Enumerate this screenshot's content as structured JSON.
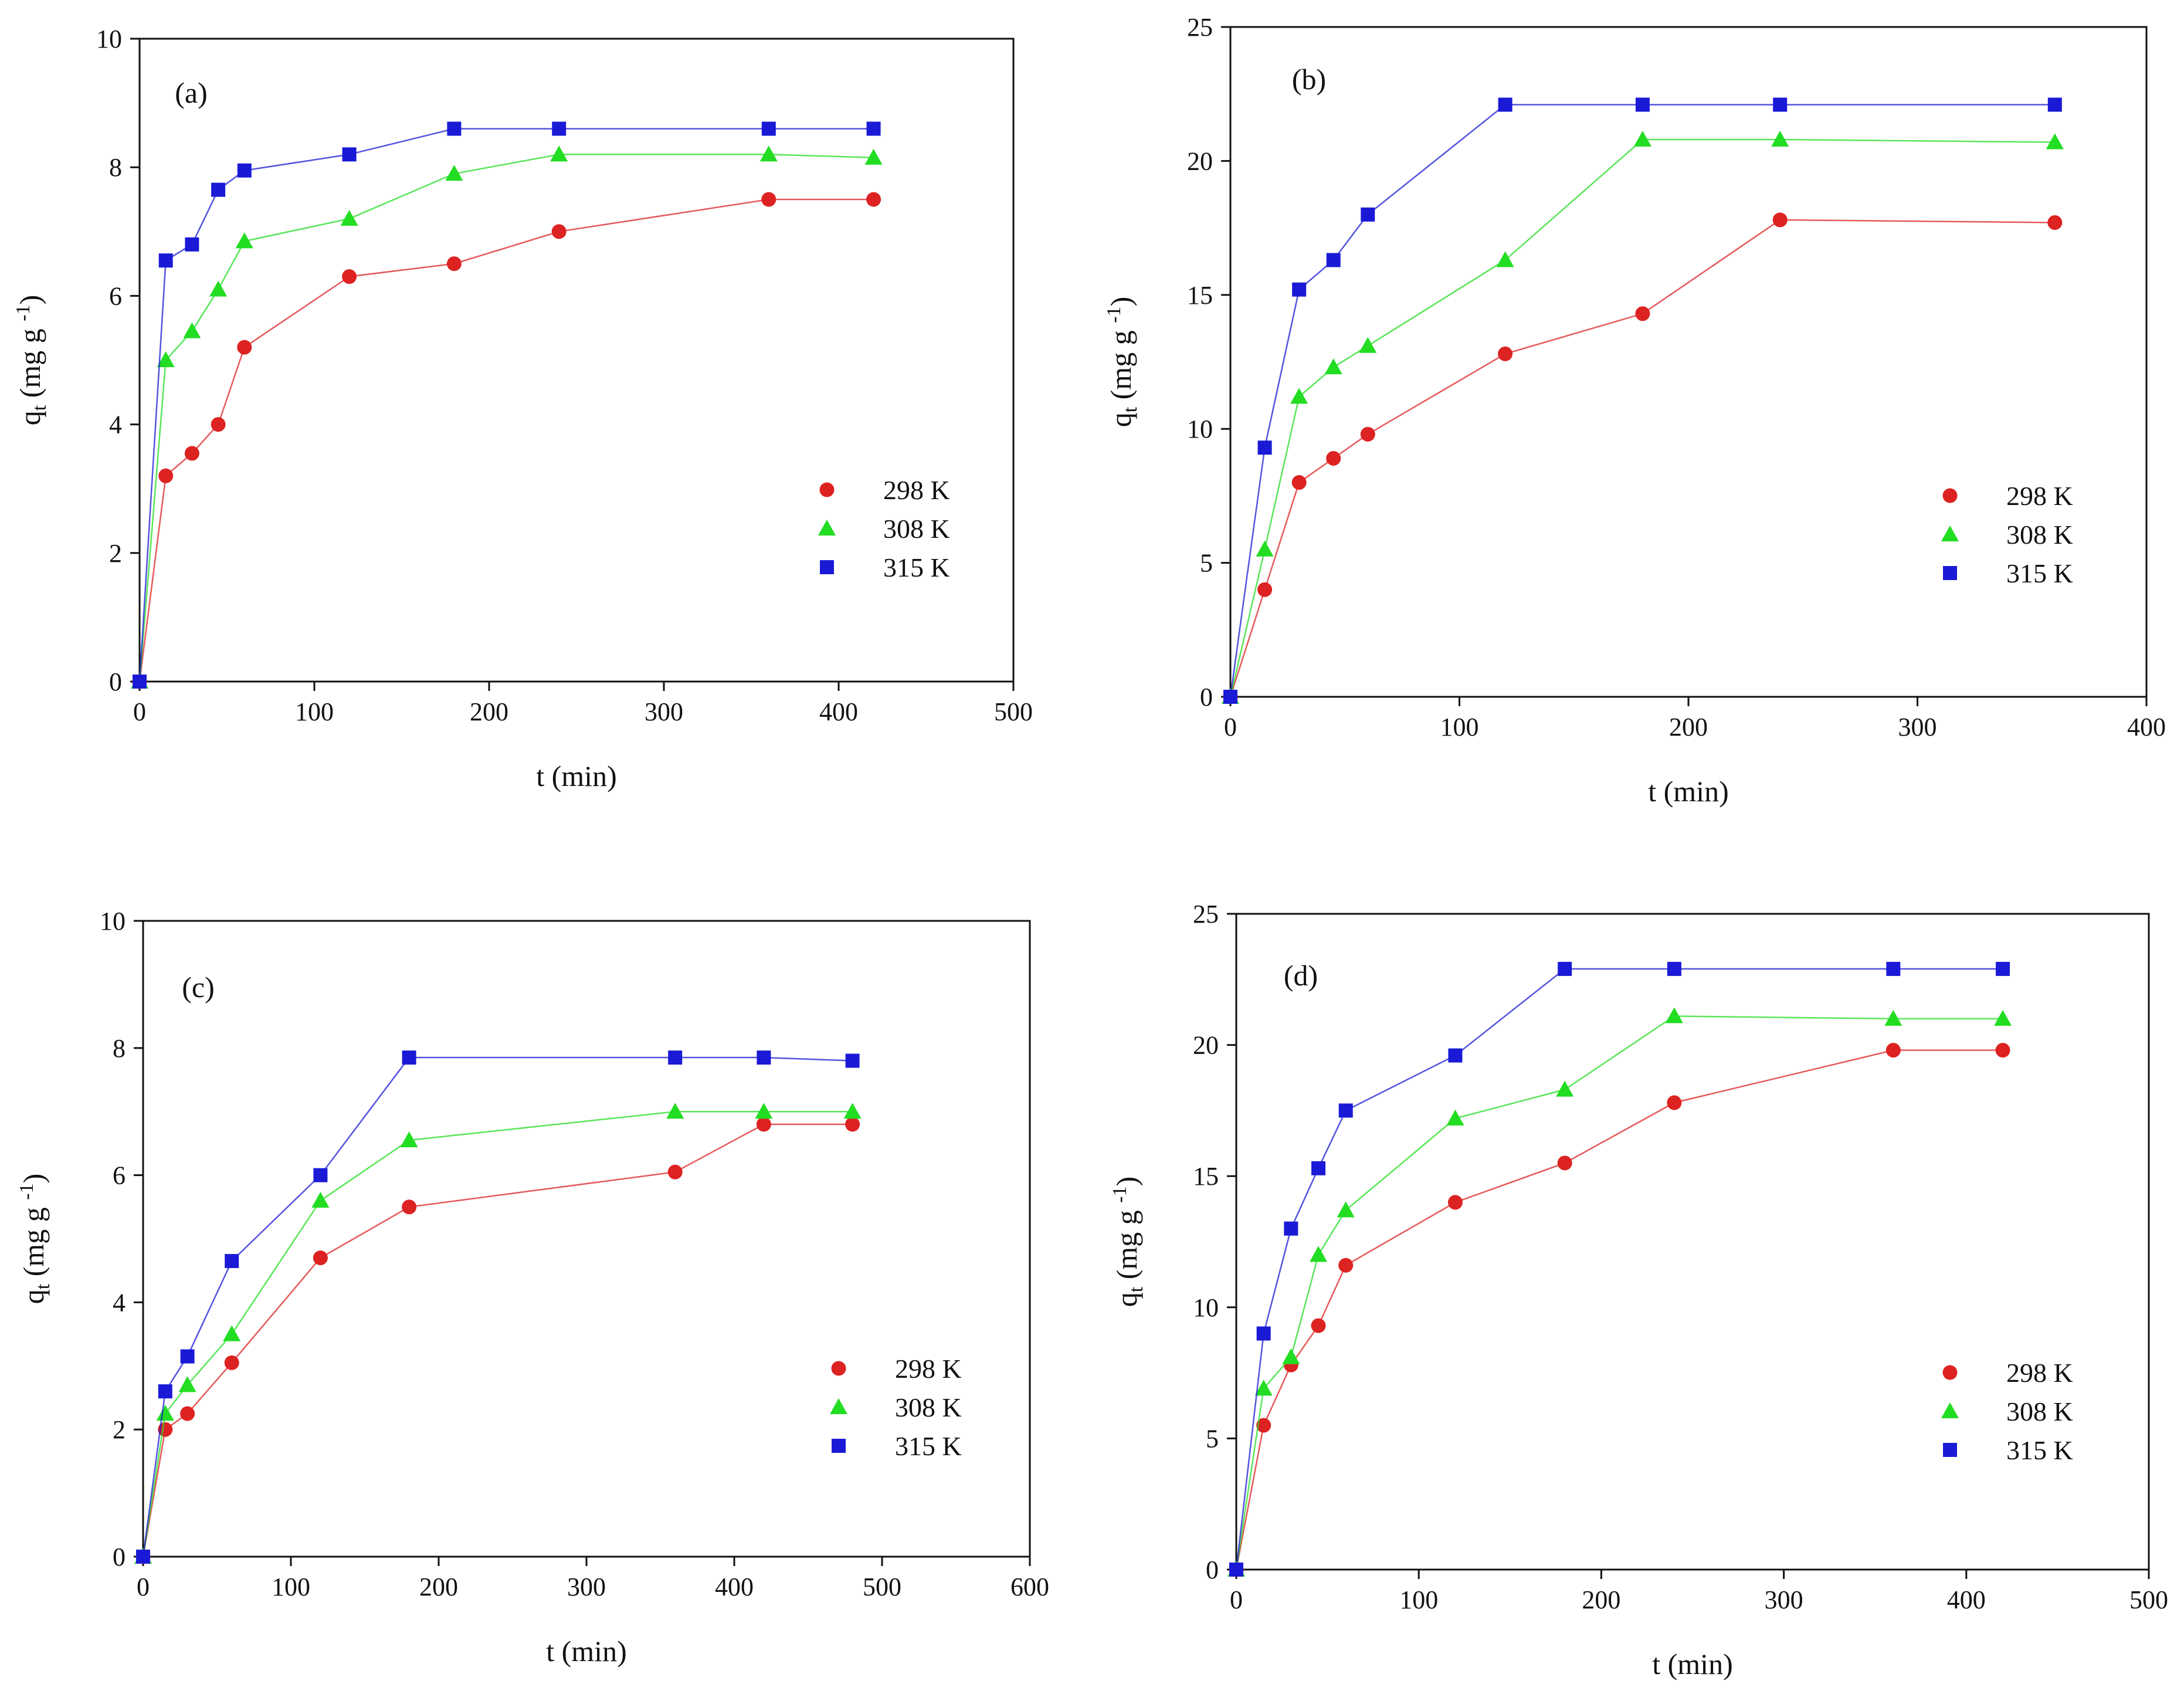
{
  "figure": {
    "colors": {
      "298 K": "#dd2222",
      "308 K": "#22dd22",
      "315 K": "#1a1ad6",
      "axis": "#111111",
      "line": "#cc6666"
    }
  },
  "chart_data": [
    {
      "type": "line",
      "panel": "(a)",
      "xlabel": "t (min)",
      "ylabel": "q",
      "ylabel_sub": "t",
      "ylabel_unit": "(mg g",
      "ylabel_sup": "-1",
      "ylabel_close": ")",
      "xlim": [
        0,
        500
      ],
      "ylim": [
        0,
        10
      ],
      "xticks": [
        0,
        100,
        200,
        300,
        400,
        500
      ],
      "yticks": [
        0,
        2,
        4,
        6,
        8,
        10
      ],
      "legend_position": "center-right",
      "series": [
        {
          "name": "298 K",
          "marker": "circle",
          "x": [
            0,
            15,
            30,
            45,
            60,
            120,
            180,
            240,
            360,
            420
          ],
          "y": [
            0,
            3.2,
            3.55,
            4.0,
            5.2,
            6.3,
            6.5,
            7.0,
            7.5,
            7.5
          ]
        },
        {
          "name": "308 K",
          "marker": "triangle",
          "x": [
            0,
            15,
            30,
            45,
            60,
            120,
            180,
            240,
            360,
            420
          ],
          "y": [
            0,
            5.0,
            5.45,
            6.1,
            6.85,
            7.2,
            7.9,
            8.2,
            8.2,
            8.15
          ]
        },
        {
          "name": "315 K",
          "marker": "square",
          "x": [
            0,
            15,
            30,
            45,
            60,
            120,
            180,
            240,
            360,
            420
          ],
          "y": [
            0,
            6.55,
            6.8,
            7.65,
            7.95,
            8.2,
            8.6,
            8.6,
            8.6,
            8.6
          ]
        }
      ]
    },
    {
      "type": "line",
      "panel": "(b)",
      "xlabel": "t (min)",
      "ylabel": "q",
      "ylabel_sub": "t",
      "ylabel_unit": "(mg g",
      "ylabel_sup": "-1",
      "ylabel_close": ")",
      "xlim": [
        0,
        400
      ],
      "ylim": [
        0,
        25
      ],
      "xticks": [
        0,
        100,
        200,
        300,
        400
      ],
      "yticks": [
        0,
        5,
        10,
        15,
        20,
        25
      ],
      "legend_position": "center-right",
      "series": [
        {
          "name": "298 K",
          "marker": "circle",
          "x": [
            0,
            15,
            30,
            45,
            60,
            120,
            180,
            240,
            360
          ],
          "y": [
            0,
            4.0,
            8.0,
            8.9,
            9.8,
            12.8,
            14.3,
            17.8,
            17.7
          ]
        },
        {
          "name": "308 K",
          "marker": "triangle",
          "x": [
            0,
            15,
            30,
            45,
            60,
            120,
            180,
            240,
            360
          ],
          "y": [
            0,
            5.5,
            11.2,
            12.3,
            13.1,
            16.3,
            20.8,
            20.8,
            20.7
          ]
        },
        {
          "name": "315 K",
          "marker": "square",
          "x": [
            0,
            15,
            30,
            45,
            60,
            120,
            180,
            240,
            360
          ],
          "y": [
            0,
            9.3,
            15.2,
            16.3,
            18.0,
            22.1,
            22.1,
            22.1,
            22.1
          ]
        }
      ]
    },
    {
      "type": "line",
      "panel": "(c)",
      "xlabel": "t (min)",
      "ylabel": "q",
      "ylabel_sub": "t",
      "ylabel_unit": "(mg g",
      "ylabel_sup": "-1",
      "ylabel_close": ")",
      "xlim": [
        0,
        600
      ],
      "ylim": [
        0,
        10
      ],
      "xticks": [
        0,
        100,
        200,
        300,
        400,
        500,
        600
      ],
      "yticks": [
        0,
        2,
        4,
        6,
        8,
        10
      ],
      "legend_position": "bottom-right",
      "series": [
        {
          "name": "298 K",
          "marker": "circle",
          "x": [
            0,
            15,
            30,
            60,
            120,
            180,
            360,
            420,
            480
          ],
          "y": [
            0,
            2.0,
            2.25,
            3.05,
            4.7,
            5.5,
            6.05,
            6.8,
            6.8
          ]
        },
        {
          "name": "308 K",
          "marker": "triangle",
          "x": [
            0,
            15,
            30,
            60,
            120,
            180,
            360,
            420,
            480
          ],
          "y": [
            0,
            2.25,
            2.7,
            3.5,
            5.6,
            6.55,
            7.0,
            7.0,
            7.0
          ]
        },
        {
          "name": "315 K",
          "marker": "square",
          "x": [
            0,
            15,
            30,
            60,
            120,
            180,
            360,
            420,
            480
          ],
          "y": [
            0,
            2.6,
            3.15,
            4.65,
            6.0,
            7.85,
            7.85,
            7.85,
            7.8
          ]
        }
      ]
    },
    {
      "type": "line",
      "panel": "(d)",
      "xlabel": "t (min)",
      "ylabel": "q",
      "ylabel_sub": "t",
      "ylabel_unit": "(mg g",
      "ylabel_sup": "-1",
      "ylabel_close": ")",
      "xlim": [
        0,
        500
      ],
      "ylim": [
        0,
        25
      ],
      "xticks": [
        0,
        100,
        200,
        300,
        400,
        500
      ],
      "yticks": [
        0,
        5,
        10,
        15,
        20,
        25
      ],
      "legend_position": "bottom-right",
      "series": [
        {
          "name": "298 K",
          "marker": "circle",
          "x": [
            0,
            15,
            30,
            45,
            60,
            120,
            180,
            240,
            360,
            420
          ],
          "y": [
            0,
            5.5,
            7.8,
            9.3,
            11.6,
            14.0,
            15.5,
            17.8,
            19.8,
            19.8
          ]
        },
        {
          "name": "308 K",
          "marker": "triangle",
          "x": [
            0,
            15,
            30,
            45,
            60,
            120,
            180,
            240,
            360,
            420
          ],
          "y": [
            0,
            6.9,
            8.1,
            12.0,
            13.7,
            17.2,
            18.3,
            21.1,
            21.0,
            21.0
          ]
        },
        {
          "name": "315 K",
          "marker": "square",
          "x": [
            0,
            15,
            30,
            45,
            60,
            120,
            180,
            240,
            360,
            420
          ],
          "y": [
            0,
            9.0,
            13.0,
            15.3,
            17.5,
            19.6,
            22.9,
            22.9,
            22.9,
            22.9
          ]
        }
      ]
    }
  ]
}
